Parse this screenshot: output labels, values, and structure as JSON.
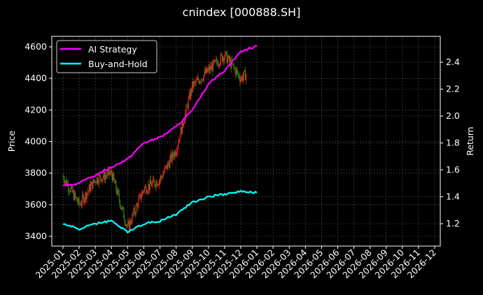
{
  "title": "cnindex [000888.SH]",
  "colors": {
    "background": "#000000",
    "ai_strategy": "#ff00ff",
    "buy_and_hold": "#00ffff",
    "candle_up": "#ff2020",
    "candle_down": "#1e8c1e",
    "grid": "#555555",
    "axis": "#ffffff"
  },
  "legend": {
    "items": [
      {
        "label": "AI Strategy",
        "color": "#ff00ff"
      },
      {
        "label": "Buy-and-Hold",
        "color": "#00ffff"
      }
    ]
  },
  "axes": {
    "left_label": "Price",
    "right_label": "Return",
    "left_ticks": [
      "3400",
      "3600",
      "3800",
      "4000",
      "4200",
      "4400",
      "4600"
    ],
    "right_ticks": [
      "1.2",
      "1.4",
      "1.6",
      "1.8",
      "2.0",
      "2.2",
      "2.4"
    ],
    "x_ticks": [
      "2025-01",
      "2025-02",
      "2025-03",
      "2025-04",
      "2025-05",
      "2025-06",
      "2025-07",
      "2025-08",
      "2025-09",
      "2025-10",
      "2025-11",
      "2025-12",
      "2026-01",
      "2026-02",
      "2026-03",
      "2026-04",
      "2026-05",
      "2026-06",
      "2026-07",
      "2026-08",
      "2026-09",
      "2026-10",
      "2026-11",
      "2026-12"
    ]
  },
  "chart_data": {
    "type": "line",
    "title": "cnindex [000888.SH]",
    "xlabel": "",
    "ylabel": "Price",
    "ylabel_right": "Return",
    "ylim": [
      3340,
      4660
    ],
    "ylim_right": [
      1.05,
      2.6
    ],
    "grid": true,
    "legend_position": "upper left",
    "x": [
      "2025-01",
      "2025-02",
      "2025-03",
      "2025-04",
      "2025-05",
      "2025-06",
      "2025-07",
      "2025-08",
      "2025-09",
      "2025-10",
      "2025-11",
      "2025-12",
      "2026-01"
    ],
    "series": [
      {
        "name": "AI Strategy",
        "axis": "right",
        "values": [
          1.48,
          1.5,
          1.56,
          1.62,
          1.68,
          1.8,
          1.84,
          1.92,
          2.04,
          2.24,
          2.34,
          2.48,
          2.52
        ]
      },
      {
        "name": "Buy-and-Hold",
        "axis": "right",
        "values": [
          1.2,
          1.16,
          1.2,
          1.22,
          1.14,
          1.2,
          1.22,
          1.27,
          1.36,
          1.4,
          1.42,
          1.44,
          1.43
        ]
      },
      {
        "name": "Price (candlestick)",
        "axis": "left",
        "values": [
          3780,
          3600,
          3760,
          3800,
          3450,
          3700,
          3760,
          3950,
          4350,
          4450,
          4550,
          4400,
          4480
        ]
      }
    ],
    "candlestick": {
      "description": "Daily OHLC candles, red = up, green = down",
      "approx_close_by_month": {
        "2025-01": 3780,
        "2025-02": 3600,
        "2025-03": 3760,
        "2025-04": 3800,
        "2025-05": 3450,
        "2025-06": 3700,
        "2025-07": 3760,
        "2025-08": 3950,
        "2025-09": 4350,
        "2025-10": 4450,
        "2025-11": 4550,
        "2025-12": 4400,
        "2026-01": 4480
      }
    }
  }
}
